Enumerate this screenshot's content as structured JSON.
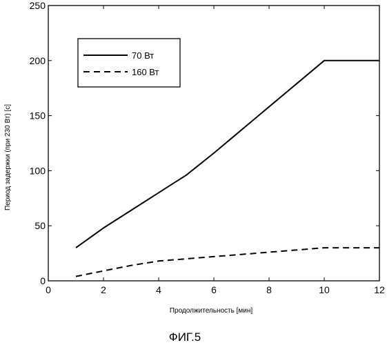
{
  "chart_data": {
    "type": "line",
    "title": "",
    "xlabel": "Продолжительность [мин]",
    "ylabel": "Период задержки (при 230 Вт) [c]",
    "xlim": [
      0,
      12
    ],
    "ylim": [
      0,
      250
    ],
    "xticks": [
      0,
      2,
      4,
      6,
      8,
      10,
      12
    ],
    "yticks": [
      0,
      50,
      100,
      150,
      200,
      250
    ],
    "grid": false,
    "legend_position": "top-left",
    "series": [
      {
        "name": "70 Вт",
        "style": "solid",
        "color": "#000000",
        "x": [
          1,
          2,
          3,
          4,
          5,
          6,
          7,
          8,
          9,
          10,
          12
        ],
        "y": [
          30,
          48,
          64,
          80,
          96,
          116,
          137,
          158,
          179,
          200,
          200
        ]
      },
      {
        "name": "160 Вт",
        "style": "dashed",
        "color": "#000000",
        "x": [
          1,
          2,
          3,
          4,
          5,
          6,
          7,
          8,
          9,
          10,
          12
        ],
        "y": [
          4,
          9,
          14,
          18,
          20,
          22,
          24,
          26,
          28,
          30,
          30
        ]
      }
    ]
  },
  "figure_caption": "ФИГ.5"
}
